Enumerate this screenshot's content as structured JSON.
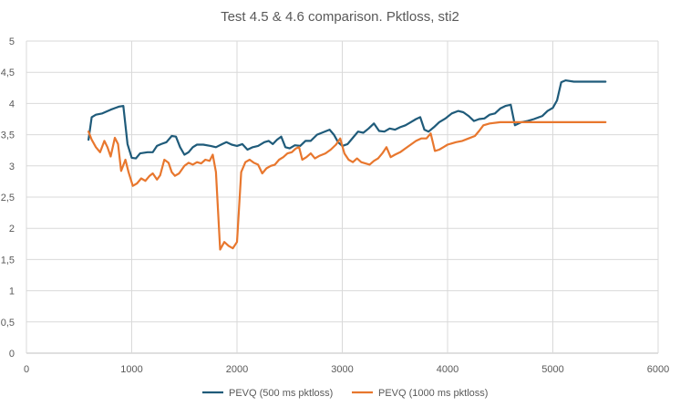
{
  "chart_data": {
    "type": "line",
    "title": "Test 4.5 & 4.6 comparison. Pktloss, sti2",
    "xlabel": "",
    "ylabel": "",
    "xlim": [
      0,
      6000
    ],
    "ylim": [
      0,
      5
    ],
    "x_ticks": [
      0,
      1000,
      2000,
      3000,
      4000,
      5000,
      6000
    ],
    "y_ticks": [
      "0",
      "0,5",
      "1",
      "1,5",
      "2",
      "2,5",
      "3",
      "3,5",
      "4",
      "4,5",
      "5"
    ],
    "grid": "horizontal",
    "legend_position": "bottom",
    "series": [
      {
        "name": "PEVQ (500 ms pktloss)",
        "color": "#1f5b7a",
        "points": [
          [
            590,
            3.42
          ],
          [
            620,
            3.78
          ],
          [
            660,
            3.82
          ],
          [
            720,
            3.84
          ],
          [
            800,
            3.9
          ],
          [
            880,
            3.95
          ],
          [
            920,
            3.96
          ],
          [
            960,
            3.35
          ],
          [
            1000,
            3.13
          ],
          [
            1040,
            3.12
          ],
          [
            1080,
            3.2
          ],
          [
            1150,
            3.22
          ],
          [
            1200,
            3.22
          ],
          [
            1240,
            3.32
          ],
          [
            1280,
            3.35
          ],
          [
            1330,
            3.38
          ],
          [
            1380,
            3.48
          ],
          [
            1420,
            3.47
          ],
          [
            1460,
            3.3
          ],
          [
            1500,
            3.18
          ],
          [
            1540,
            3.22
          ],
          [
            1580,
            3.3
          ],
          [
            1620,
            3.34
          ],
          [
            1680,
            3.34
          ],
          [
            1750,
            3.32
          ],
          [
            1800,
            3.3
          ],
          [
            1860,
            3.35
          ],
          [
            1900,
            3.38
          ],
          [
            1950,
            3.34
          ],
          [
            2000,
            3.32
          ],
          [
            2050,
            3.35
          ],
          [
            2100,
            3.26
          ],
          [
            2150,
            3.3
          ],
          [
            2200,
            3.32
          ],
          [
            2260,
            3.38
          ],
          [
            2300,
            3.4
          ],
          [
            2340,
            3.35
          ],
          [
            2380,
            3.42
          ],
          [
            2420,
            3.47
          ],
          [
            2460,
            3.3
          ],
          [
            2500,
            3.28
          ],
          [
            2550,
            3.33
          ],
          [
            2600,
            3.32
          ],
          [
            2650,
            3.4
          ],
          [
            2700,
            3.4
          ],
          [
            2760,
            3.5
          ],
          [
            2820,
            3.54
          ],
          [
            2880,
            3.58
          ],
          [
            2920,
            3.5
          ],
          [
            2960,
            3.38
          ],
          [
            3000,
            3.32
          ],
          [
            3050,
            3.35
          ],
          [
            3100,
            3.45
          ],
          [
            3150,
            3.55
          ],
          [
            3200,
            3.53
          ],
          [
            3250,
            3.6
          ],
          [
            3300,
            3.68
          ],
          [
            3350,
            3.56
          ],
          [
            3400,
            3.55
          ],
          [
            3450,
            3.6
          ],
          [
            3500,
            3.58
          ],
          [
            3550,
            3.62
          ],
          [
            3600,
            3.65
          ],
          [
            3650,
            3.7
          ],
          [
            3700,
            3.75
          ],
          [
            3740,
            3.78
          ],
          [
            3780,
            3.58
          ],
          [
            3820,
            3.55
          ],
          [
            3870,
            3.62
          ],
          [
            3920,
            3.7
          ],
          [
            3980,
            3.76
          ],
          [
            4040,
            3.84
          ],
          [
            4100,
            3.88
          ],
          [
            4150,
            3.86
          ],
          [
            4200,
            3.8
          ],
          [
            4250,
            3.72
          ],
          [
            4300,
            3.75
          ],
          [
            4350,
            3.76
          ],
          [
            4400,
            3.82
          ],
          [
            4450,
            3.84
          ],
          [
            4500,
            3.92
          ],
          [
            4550,
            3.96
          ],
          [
            4600,
            3.98
          ],
          [
            4640,
            3.65
          ],
          [
            4700,
            3.7
          ],
          [
            4760,
            3.72
          ],
          [
            4820,
            3.75
          ],
          [
            4900,
            3.8
          ],
          [
            4950,
            3.88
          ],
          [
            5000,
            3.93
          ],
          [
            5040,
            4.05
          ],
          [
            5080,
            4.34
          ],
          [
            5120,
            4.37
          ],
          [
            5200,
            4.35
          ],
          [
            5500,
            4.35
          ]
        ]
      },
      {
        "name": "PEVQ (1000 ms pktloss)",
        "color": "#e8772e",
        "points": [
          [
            590,
            3.55
          ],
          [
            620,
            3.42
          ],
          [
            660,
            3.3
          ],
          [
            700,
            3.22
          ],
          [
            740,
            3.4
          ],
          [
            770,
            3.3
          ],
          [
            800,
            3.15
          ],
          [
            840,
            3.45
          ],
          [
            870,
            3.35
          ],
          [
            900,
            2.92
          ],
          [
            940,
            3.1
          ],
          [
            970,
            2.9
          ],
          [
            1010,
            2.68
          ],
          [
            1050,
            2.72
          ],
          [
            1090,
            2.8
          ],
          [
            1130,
            2.76
          ],
          [
            1170,
            2.84
          ],
          [
            1200,
            2.88
          ],
          [
            1240,
            2.78
          ],
          [
            1270,
            2.85
          ],
          [
            1310,
            3.1
          ],
          [
            1350,
            3.05
          ],
          [
            1380,
            2.9
          ],
          [
            1410,
            2.84
          ],
          [
            1450,
            2.88
          ],
          [
            1500,
            3.0
          ],
          [
            1540,
            3.05
          ],
          [
            1580,
            3.02
          ],
          [
            1620,
            3.06
          ],
          [
            1660,
            3.04
          ],
          [
            1700,
            3.1
          ],
          [
            1740,
            3.08
          ],
          [
            1770,
            3.18
          ],
          [
            1800,
            2.9
          ],
          [
            1840,
            1.66
          ],
          [
            1880,
            1.78
          ],
          [
            1920,
            1.72
          ],
          [
            1960,
            1.68
          ],
          [
            2000,
            1.78
          ],
          [
            2040,
            2.9
          ],
          [
            2080,
            3.06
          ],
          [
            2120,
            3.1
          ],
          [
            2160,
            3.05
          ],
          [
            2200,
            3.02
          ],
          [
            2240,
            2.88
          ],
          [
            2280,
            2.96
          ],
          [
            2320,
            3.0
          ],
          [
            2360,
            3.02
          ],
          [
            2400,
            3.1
          ],
          [
            2440,
            3.14
          ],
          [
            2480,
            3.2
          ],
          [
            2520,
            3.22
          ],
          [
            2560,
            3.28
          ],
          [
            2590,
            3.3
          ],
          [
            2620,
            3.1
          ],
          [
            2660,
            3.14
          ],
          [
            2700,
            3.2
          ],
          [
            2740,
            3.12
          ],
          [
            2780,
            3.16
          ],
          [
            2840,
            3.2
          ],
          [
            2890,
            3.26
          ],
          [
            2940,
            3.34
          ],
          [
            2980,
            3.44
          ],
          [
            3020,
            3.2
          ],
          [
            3060,
            3.1
          ],
          [
            3100,
            3.06
          ],
          [
            3140,
            3.12
          ],
          [
            3180,
            3.06
          ],
          [
            3220,
            3.04
          ],
          [
            3260,
            3.02
          ],
          [
            3300,
            3.08
          ],
          [
            3340,
            3.12
          ],
          [
            3380,
            3.2
          ],
          [
            3420,
            3.3
          ],
          [
            3460,
            3.14
          ],
          [
            3500,
            3.18
          ],
          [
            3550,
            3.22
          ],
          [
            3600,
            3.28
          ],
          [
            3650,
            3.34
          ],
          [
            3700,
            3.4
          ],
          [
            3750,
            3.44
          ],
          [
            3800,
            3.44
          ],
          [
            3840,
            3.52
          ],
          [
            3880,
            3.24
          ],
          [
            3920,
            3.26
          ],
          [
            3960,
            3.3
          ],
          [
            4000,
            3.34
          ],
          [
            4040,
            3.36
          ],
          [
            4080,
            3.38
          ],
          [
            4140,
            3.4
          ],
          [
            4200,
            3.44
          ],
          [
            4260,
            3.48
          ],
          [
            4300,
            3.56
          ],
          [
            4340,
            3.65
          ],
          [
            4400,
            3.68
          ],
          [
            4500,
            3.7
          ],
          [
            5500,
            3.7
          ]
        ]
      }
    ]
  }
}
